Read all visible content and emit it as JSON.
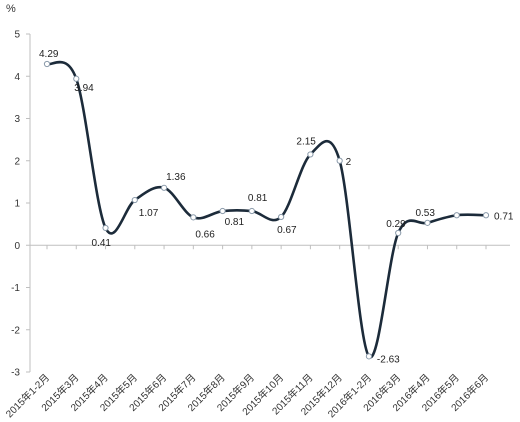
{
  "chart_data": {
    "type": "line",
    "ylabel": "%",
    "ylim": [
      -3,
      5
    ],
    "yticks": [
      "5",
      "4",
      "3",
      "2",
      "1",
      "0",
      "-1",
      "-2",
      "-3"
    ],
    "grid": false,
    "categories": [
      "2015年1-2月",
      "2015年3月",
      "2015年4月",
      "2015年5月",
      "2015年6月",
      "2015年7月",
      "2015年8月",
      "2015年9月",
      "2015年10月",
      "2015年11月",
      "2015年12月",
      "2016年1-2月",
      "2016年3月",
      "2016年4月",
      "2016年5月",
      "2016年6月"
    ],
    "series": [
      {
        "values": [
          4.29,
          3.94,
          0.41,
          1.07,
          1.36,
          0.66,
          0.81,
          0.81,
          0.67,
          2.15,
          2,
          -2.63,
          0.29,
          0.53,
          0.71,
          0.71
        ],
        "labels": [
          "4.29",
          "3.94",
          "0.41",
          "1.07",
          "1.36",
          "0.66",
          "0.81",
          "0.81",
          "0.67",
          "2.15",
          "2",
          "-2.63",
          "0.29",
          "0.53",
          "",
          "0.71"
        ],
        "color": "#1c2b3a"
      }
    ]
  }
}
